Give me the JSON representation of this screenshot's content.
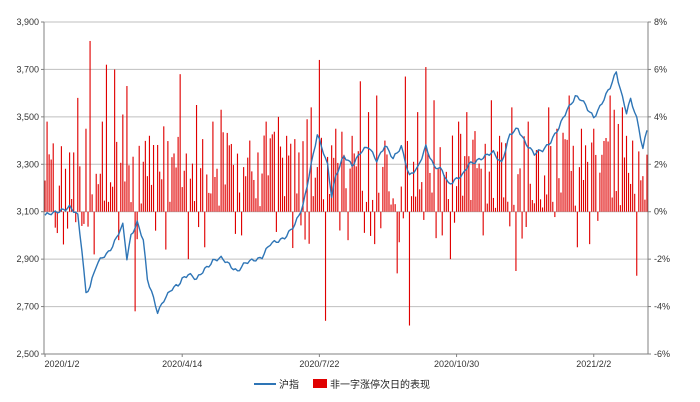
{
  "chart_data": {
    "type": "bar+line",
    "title": "",
    "x_tick_labels": [
      "2020/1/2",
      "2020/4/14",
      "2020/7/22",
      "2020/10/30",
      "2021/2/2"
    ],
    "x_tick_index": [
      0,
      67,
      134,
      201,
      268
    ],
    "left_axis": {
      "label": "",
      "min": 2500,
      "max": 3900,
      "ticks": [
        2500,
        2700,
        2900,
        3100,
        3300,
        3500,
        3700,
        3900
      ],
      "tick_labels": [
        "2,500",
        "2,700",
        "2,900",
        "3,100",
        "3,300",
        "3,500",
        "3,700",
        "3,900"
      ]
    },
    "right_axis": {
      "label": "",
      "min": -6,
      "max": 8,
      "ticks": [
        -6,
        -4,
        -2,
        0,
        2,
        4,
        6,
        8
      ],
      "tick_labels": [
        "-6%",
        "-4%",
        "-2%",
        "0%",
        "2%",
        "4%",
        "6%",
        "8%"
      ]
    },
    "grid": true,
    "legend_position": "bottom",
    "series": [
      {
        "name": "沪指",
        "type": "line",
        "axis": "left",
        "color": "#2e75b6",
        "keypoints": [
          [
            0,
            3085
          ],
          [
            4,
            3090
          ],
          [
            8,
            3110
          ],
          [
            12,
            3120
          ],
          [
            16,
            3080
          ],
          [
            18,
            2940
          ],
          [
            20,
            2760
          ],
          [
            22,
            2790
          ],
          [
            25,
            2870
          ],
          [
            28,
            2905
          ],
          [
            30,
            2920
          ],
          [
            33,
            2960
          ],
          [
            36,
            3010
          ],
          [
            38,
            3040
          ],
          [
            40,
            2900
          ],
          [
            42,
            3000
          ],
          [
            45,
            3060
          ],
          [
            48,
            2980
          ],
          [
            50,
            2810
          ],
          [
            52,
            2760
          ],
          [
            55,
            2680
          ],
          [
            58,
            2730
          ],
          [
            62,
            2770
          ],
          [
            65,
            2790
          ],
          [
            67,
            2820
          ],
          [
            70,
            2840
          ],
          [
            74,
            2810
          ],
          [
            78,
            2860
          ],
          [
            82,
            2895
          ],
          [
            86,
            2900
          ],
          [
            90,
            2880
          ],
          [
            94,
            2850
          ],
          [
            98,
            2880
          ],
          [
            102,
            2900
          ],
          [
            106,
            2910
          ],
          [
            110,
            2960
          ],
          [
            114,
            2980
          ],
          [
            118,
            3000
          ],
          [
            122,
            3040
          ],
          [
            126,
            3130
          ],
          [
            130,
            3300
          ],
          [
            133,
            3420
          ],
          [
            136,
            3350
          ],
          [
            138,
            3300
          ],
          [
            140,
            3170
          ],
          [
            142,
            3250
          ],
          [
            146,
            3330
          ],
          [
            150,
            3300
          ],
          [
            154,
            3350
          ],
          [
            158,
            3370
          ],
          [
            162,
            3320
          ],
          [
            166,
            3380
          ],
          [
            170,
            3320
          ],
          [
            174,
            3380
          ],
          [
            178,
            3250
          ],
          [
            182,
            3280
          ],
          [
            186,
            3380
          ],
          [
            190,
            3290
          ],
          [
            194,
            3270
          ],
          [
            197,
            3220
          ],
          [
            201,
            3240
          ],
          [
            204,
            3250
          ],
          [
            207,
            3300
          ],
          [
            211,
            3320
          ],
          [
            215,
            3330
          ],
          [
            219,
            3350
          ],
          [
            223,
            3310
          ],
          [
            227,
            3420
          ],
          [
            231,
            3450
          ],
          [
            235,
            3390
          ],
          [
            239,
            3340
          ],
          [
            243,
            3360
          ],
          [
            247,
            3400
          ],
          [
            251,
            3450
          ],
          [
            255,
            3530
          ],
          [
            259,
            3590
          ],
          [
            262,
            3570
          ],
          [
            265,
            3530
          ],
          [
            268,
            3500
          ],
          [
            272,
            3560
          ],
          [
            276,
            3620
          ],
          [
            279,
            3690
          ],
          [
            281,
            3620
          ],
          [
            284,
            3520
          ],
          [
            286,
            3570
          ],
          [
            289,
            3490
          ],
          [
            292,
            3370
          ],
          [
            294,
            3450
          ]
        ]
      },
      {
        "name": "非一字涨停次日的表现",
        "type": "bar",
        "axis": "right",
        "color": "#e00000",
        "n": 295,
        "explicit": [
          [
            1,
            3.8
          ],
          [
            3,
            2.2
          ],
          [
            6,
            -0.9
          ],
          [
            12,
            2.5
          ],
          [
            14,
            2.5
          ],
          [
            16,
            4.8
          ],
          [
            18,
            -0.6
          ],
          [
            20,
            3.5
          ],
          [
            22,
            7.2
          ],
          [
            24,
            -1.8
          ],
          [
            28,
            3.8
          ],
          [
            30,
            6.2
          ],
          [
            34,
            6.0
          ],
          [
            36,
            -1.2
          ],
          [
            38,
            4.1
          ],
          [
            40,
            5.3
          ],
          [
            44,
            -4.2
          ],
          [
            50,
            1.5
          ],
          [
            54,
            -0.8
          ],
          [
            58,
            3.6
          ],
          [
            62,
            2.3
          ],
          [
            66,
            5.8
          ],
          [
            70,
            -2.0
          ],
          [
            74,
            4.5
          ],
          [
            78,
            -1.5
          ],
          [
            82,
            3.8
          ],
          [
            86,
            4.3
          ],
          [
            90,
            2.8
          ],
          [
            96,
            -1.0
          ],
          [
            100,
            3.0
          ],
          [
            104,
            2.5
          ],
          [
            108,
            3.8
          ],
          [
            114,
            4.0
          ],
          [
            118,
            3.2
          ],
          [
            124,
            2.5
          ],
          [
            128,
            3.9
          ],
          [
            130,
            4.4
          ],
          [
            134,
            6.4
          ],
          [
            137,
            -4.6
          ],
          [
            140,
            2.8
          ],
          [
            142,
            3.5
          ],
          [
            146,
            2.4
          ],
          [
            148,
            -1.2
          ],
          [
            150,
            3.2
          ],
          [
            154,
            5.5
          ],
          [
            158,
            4.2
          ],
          [
            162,
            4.9
          ],
          [
            166,
            3.0
          ],
          [
            172,
            -2.6
          ],
          [
            176,
            5.7
          ],
          [
            178,
            -4.8
          ],
          [
            182,
            4.2
          ],
          [
            186,
            6.1
          ],
          [
            190,
            4.7
          ],
          [
            194,
            -1.0
          ],
          [
            198,
            -2.0
          ],
          [
            202,
            3.8
          ],
          [
            206,
            4.2
          ],
          [
            210,
            3.4
          ],
          [
            214,
            -1.0
          ],
          [
            218,
            4.7
          ],
          [
            222,
            3.2
          ],
          [
            228,
            4.4
          ],
          [
            230,
            -2.5
          ],
          [
            236,
            3.8
          ],
          [
            240,
            2.6
          ],
          [
            246,
            4.4
          ],
          [
            250,
            3.5
          ],
          [
            256,
            4.9
          ],
          [
            260,
            -1.5
          ],
          [
            262,
            3.5
          ],
          [
            264,
            2.8
          ],
          [
            268,
            3.5
          ],
          [
            272,
            2.4
          ],
          [
            276,
            4.9
          ],
          [
            278,
            4.3
          ],
          [
            280,
            3.7
          ],
          [
            282,
            4.4
          ],
          [
            284,
            3.2
          ],
          [
            287,
            3.0
          ],
          [
            289,
            -2.7
          ],
          [
            292,
            1.5
          ]
        ]
      }
    ]
  },
  "colors": {
    "grid": "#bfbfbf",
    "axis": "#808080",
    "line": "#2e75b6",
    "bar": "#e00000"
  }
}
